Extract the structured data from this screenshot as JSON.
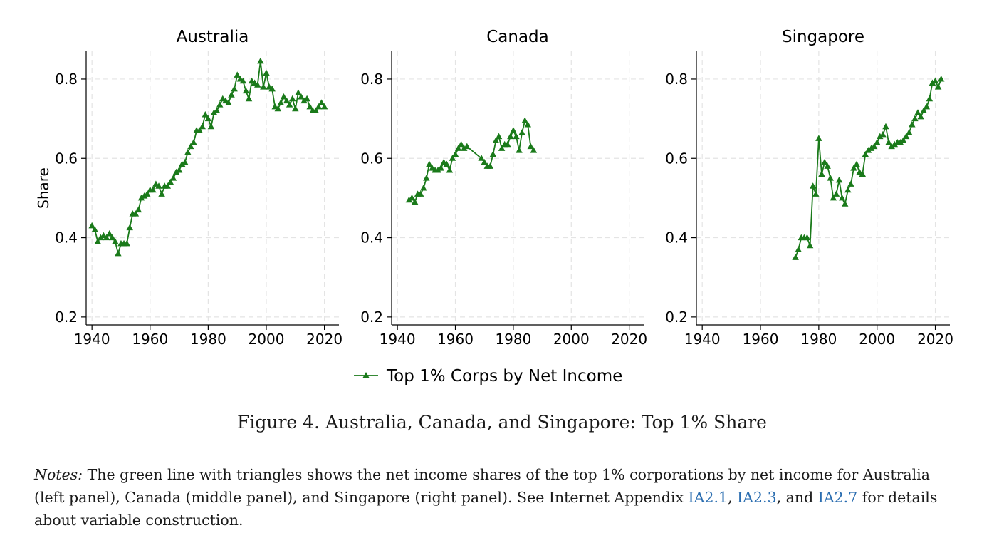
{
  "chart_data": {
    "type": "line",
    "y_axis_label": "Share",
    "x_ticks": [
      1940,
      1960,
      1980,
      2000,
      2020
    ],
    "y_ticks": [
      "0.2",
      "0.4",
      "0.6",
      "0.8"
    ],
    "x_tick_labels": [
      "1940",
      "1960",
      "1980",
      "2000",
      "2020"
    ],
    "xlim": [
      1938,
      2025
    ],
    "ylim": [
      0.18,
      0.87
    ],
    "grid": true,
    "marker": "triangle",
    "series_color": "#1a7a1a",
    "legend": {
      "label": "Top 1% Corps by Net Income",
      "position": "bottom-center"
    },
    "panels": [
      {
        "title": "Australia",
        "x": [
          1940,
          1941,
          1942,
          1943,
          1944,
          1945,
          1946,
          1947,
          1948,
          1949,
          1950,
          1951,
          1952,
          1953,
          1954,
          1955,
          1956,
          1957,
          1958,
          1959,
          1960,
          1961,
          1962,
          1963,
          1964,
          1965,
          1966,
          1967,
          1968,
          1969,
          1970,
          1971,
          1972,
          1973,
          1974,
          1975,
          1976,
          1977,
          1978,
          1979,
          1980,
          1981,
          1982,
          1983,
          1984,
          1985,
          1986,
          1987,
          1988,
          1989,
          1990,
          1991,
          1992,
          1993,
          1994,
          1995,
          1996,
          1997,
          1998,
          1999,
          2000,
          2001,
          2002,
          2003,
          2004,
          2005,
          2006,
          2007,
          2008,
          2009,
          2010,
          2011,
          2012,
          2013,
          2014,
          2015,
          2016,
          2017,
          2018,
          2019,
          2020
        ],
        "y": [
          0.43,
          0.42,
          0.39,
          0.4,
          0.405,
          0.4,
          0.41,
          0.4,
          0.39,
          0.36,
          0.385,
          0.385,
          0.385,
          0.425,
          0.46,
          0.46,
          0.47,
          0.5,
          0.505,
          0.51,
          0.52,
          0.52,
          0.535,
          0.53,
          0.51,
          0.53,
          0.53,
          0.54,
          0.55,
          0.565,
          0.57,
          0.585,
          0.59,
          0.615,
          0.63,
          0.64,
          0.67,
          0.67,
          0.68,
          0.71,
          0.7,
          0.68,
          0.715,
          0.72,
          0.735,
          0.75,
          0.745,
          0.74,
          0.76,
          0.775,
          0.81,
          0.8,
          0.795,
          0.77,
          0.75,
          0.795,
          0.79,
          0.785,
          0.845,
          0.78,
          0.815,
          0.78,
          0.775,
          0.73,
          0.725,
          0.74,
          0.755,
          0.745,
          0.735,
          0.75,
          0.725,
          0.765,
          0.755,
          0.745,
          0.75,
          0.73,
          0.72,
          0.72,
          0.73,
          0.74,
          0.73
        ]
      },
      {
        "title": "Canada",
        "x": [
          1944,
          1945,
          1946,
          1947,
          1948,
          1949,
          1950,
          1951,
          1952,
          1953,
          1954,
          1955,
          1956,
          1957,
          1958,
          1959,
          1960,
          1961,
          1962,
          1963,
          1964,
          1969,
          1970,
          1971,
          1972,
          1973,
          1974,
          1975,
          1976,
          1977,
          1978,
          1979,
          1980,
          1981,
          1982,
          1983,
          1984,
          1985,
          1986,
          1987
        ],
        "y": [
          0.495,
          0.5,
          0.49,
          0.51,
          0.51,
          0.525,
          0.55,
          0.585,
          0.575,
          0.57,
          0.57,
          0.575,
          0.59,
          0.585,
          0.57,
          0.6,
          0.61,
          0.625,
          0.635,
          0.625,
          0.63,
          0.6,
          0.59,
          0.58,
          0.58,
          0.61,
          0.645,
          0.655,
          0.625,
          0.635,
          0.635,
          0.655,
          0.67,
          0.655,
          0.62,
          0.665,
          0.695,
          0.685,
          0.63,
          0.62
        ]
      },
      {
        "title": "Singapore",
        "x": [
          1972,
          1973,
          1974,
          1975,
          1976,
          1977,
          1978,
          1979,
          1980,
          1981,
          1982,
          1983,
          1984,
          1985,
          1986,
          1987,
          1988,
          1989,
          1990,
          1991,
          1992,
          1993,
          1994,
          1995,
          1996,
          1997,
          1998,
          1999,
          2000,
          2001,
          2002,
          2003,
          2004,
          2005,
          2006,
          2007,
          2008,
          2009,
          2010,
          2011,
          2012,
          2013,
          2014,
          2015,
          2016,
          2017,
          2018,
          2019,
          2020,
          2021,
          2022
        ],
        "y": [
          0.35,
          0.37,
          0.4,
          0.4,
          0.4,
          0.38,
          0.53,
          0.51,
          0.65,
          0.56,
          0.59,
          0.58,
          0.55,
          0.5,
          0.51,
          0.545,
          0.5,
          0.485,
          0.52,
          0.535,
          0.575,
          0.585,
          0.565,
          0.56,
          0.61,
          0.62,
          0.625,
          0.63,
          0.64,
          0.655,
          0.66,
          0.68,
          0.64,
          0.63,
          0.635,
          0.64,
          0.64,
          0.645,
          0.655,
          0.665,
          0.685,
          0.7,
          0.715,
          0.705,
          0.72,
          0.73,
          0.75,
          0.79,
          0.795,
          0.78,
          0.8
        ]
      }
    ]
  },
  "caption": "Figure 4. Australia, Canada, and Singapore: Top 1% Share",
  "notes": {
    "label": "Notes:",
    "text_1": " The green line with triangles shows the net income shares of the top 1% corporations by net income for Australia (left panel), Canada (middle panel), and Singapore (right panel). See Internet Appendix ",
    "link_1": "IA2.1",
    "sep_1": ", ",
    "link_2": "IA2.3",
    "sep_2": ", and ",
    "link_3": "IA2.7",
    "text_2": " for details about variable construction."
  }
}
